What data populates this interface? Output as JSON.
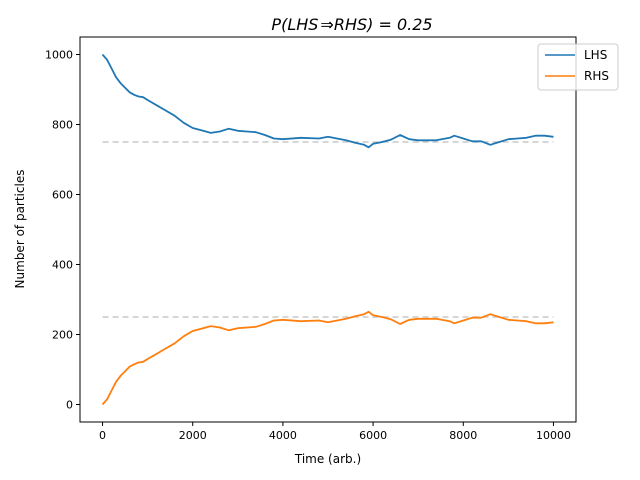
{
  "chart_data": {
    "type": "line",
    "title_prefix": "P(LHS",
    "title_arrow": "⇒",
    "title_suffix": "RHS) = 0.25",
    "xlabel": "Time (arb.)",
    "ylabel": "Number of particles",
    "xlim": [
      -500,
      10500
    ],
    "ylim": [
      -50,
      1050
    ],
    "xticks": [
      0,
      2000,
      4000,
      6000,
      8000,
      10000
    ],
    "yticks": [
      0,
      200,
      400,
      600,
      800,
      1000
    ],
    "xtick_labels": [
      "0",
      "2000",
      "4000",
      "6000",
      "8000",
      "10000"
    ],
    "ytick_labels": [
      "0",
      "200",
      "400",
      "600",
      "800",
      "1000"
    ],
    "legend_position": "top-right",
    "grid": false,
    "reference_lines": [
      {
        "y": 750,
        "color": "#c8c8c8",
        "style": "dashed"
      },
      {
        "y": 250,
        "color": "#c8c8c8",
        "style": "dashed"
      }
    ],
    "series": [
      {
        "name": "LHS",
        "color": "#1f77b4",
        "x": [
          0,
          100,
          200,
          300,
          400,
          500,
          600,
          700,
          800,
          900,
          1000,
          1200,
          1400,
          1600,
          1800,
          2000,
          2200,
          2400,
          2600,
          2800,
          3000,
          3200,
          3400,
          3600,
          3800,
          4000,
          4400,
          4800,
          5000,
          5400,
          5600,
          5800,
          5900,
          6000,
          6200,
          6400,
          6600,
          6800,
          7000,
          7400,
          7700,
          7800,
          8000,
          8200,
          8400,
          8600,
          8800,
          9000,
          9200,
          9400,
          9600,
          9800,
          10000
        ],
        "values": [
          1000,
          985,
          960,
          935,
          918,
          905,
          892,
          885,
          880,
          878,
          870,
          855,
          840,
          825,
          805,
          790,
          783,
          776,
          780,
          788,
          782,
          780,
          778,
          770,
          760,
          758,
          762,
          760,
          765,
          755,
          748,
          742,
          735,
          745,
          750,
          757,
          770,
          758,
          755,
          755,
          762,
          768,
          760,
          752,
          752,
          742,
          750,
          758,
          760,
          762,
          768,
          768,
          765
        ]
      },
      {
        "name": "RHS",
        "color": "#ff7f0e",
        "x": [
          0,
          100,
          200,
          300,
          400,
          500,
          600,
          700,
          800,
          900,
          1000,
          1200,
          1400,
          1600,
          1800,
          2000,
          2200,
          2400,
          2600,
          2800,
          3000,
          3200,
          3400,
          3600,
          3800,
          4000,
          4400,
          4800,
          5000,
          5400,
          5600,
          5800,
          5900,
          6000,
          6200,
          6400,
          6600,
          6800,
          7000,
          7400,
          7700,
          7800,
          8000,
          8200,
          8400,
          8600,
          8800,
          9000,
          9200,
          9400,
          9600,
          9800,
          10000
        ],
        "values": [
          0,
          15,
          40,
          65,
          82,
          95,
          108,
          115,
          120,
          122,
          130,
          145,
          160,
          175,
          195,
          210,
          217,
          224,
          220,
          212,
          218,
          220,
          222,
          230,
          240,
          242,
          238,
          240,
          235,
          245,
          252,
          258,
          265,
          255,
          250,
          243,
          230,
          242,
          245,
          245,
          238,
          232,
          240,
          248,
          248,
          258,
          250,
          242,
          240,
          238,
          232,
          232,
          235
        ]
      }
    ]
  }
}
